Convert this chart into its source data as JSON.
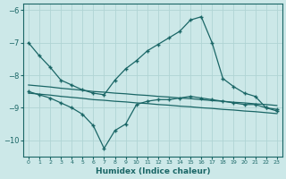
{
  "xlabel": "Humidex (Indice chaleur)",
  "background_color": "#cce8e8",
  "grid_color": "#b0d4d4",
  "line_color": "#1a6666",
  "x": [
    0,
    1,
    2,
    3,
    4,
    5,
    6,
    7,
    8,
    9,
    10,
    11,
    12,
    13,
    14,
    15,
    16,
    17,
    18,
    19,
    20,
    21,
    22,
    23
  ],
  "line_top": [
    -7.0,
    -7.4,
    -7.75,
    -8.15,
    -8.3,
    -8.45,
    -8.55,
    -8.6,
    -8.15,
    -7.8,
    -7.55,
    -7.25,
    -7.05,
    -6.85,
    -6.65,
    -6.3,
    -6.2,
    -7.0,
    -8.1,
    -8.35,
    -8.55,
    -8.65,
    -9.0,
    -9.05
  ],
  "line_bot": [
    -8.5,
    -8.6,
    -8.7,
    -8.85,
    -9.0,
    -9.2,
    -9.55,
    -10.25,
    -9.7,
    -9.5,
    -8.9,
    -8.8,
    -8.75,
    -8.75,
    -8.7,
    -8.65,
    -8.7,
    -8.75,
    -8.8,
    -8.85,
    -8.9,
    -8.9,
    -9.0,
    -9.1
  ],
  "line_flat1": [
    -8.3,
    -8.33,
    -8.36,
    -8.4,
    -8.43,
    -8.46,
    -8.5,
    -8.52,
    -8.55,
    -8.57,
    -8.6,
    -8.62,
    -8.65,
    -8.67,
    -8.7,
    -8.72,
    -8.75,
    -8.78,
    -8.8,
    -8.83,
    -8.85,
    -8.88,
    -8.9,
    -8.93
  ],
  "line_flat2": [
    -8.55,
    -8.58,
    -8.61,
    -8.65,
    -8.68,
    -8.71,
    -8.75,
    -8.77,
    -8.8,
    -8.82,
    -8.85,
    -8.87,
    -8.9,
    -8.92,
    -8.95,
    -8.97,
    -9.0,
    -9.02,
    -9.05,
    -9.07,
    -9.1,
    -9.12,
    -9.15,
    -9.18
  ],
  "ylim": [
    -10.5,
    -5.8
  ],
  "yticks": [
    -10,
    -9,
    -8,
    -7,
    -6
  ],
  "xticks": [
    0,
    1,
    2,
    3,
    4,
    5,
    6,
    7,
    8,
    9,
    10,
    11,
    12,
    13,
    14,
    15,
    16,
    17,
    18,
    19,
    20,
    21,
    22,
    23
  ]
}
